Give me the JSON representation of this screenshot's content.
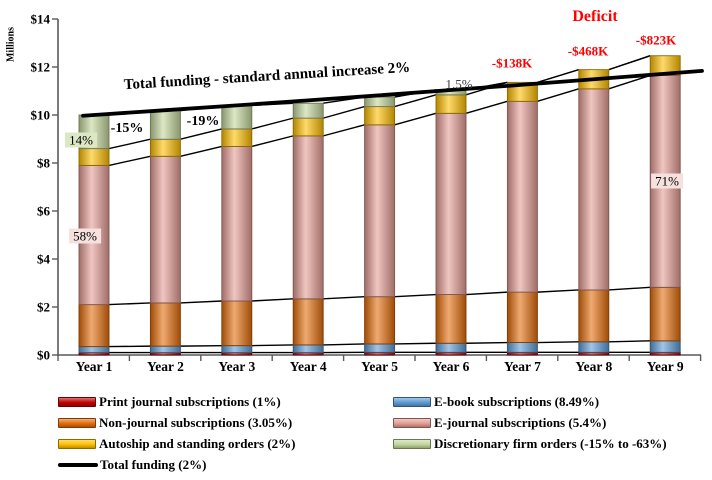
{
  "chart_data": {
    "type": "bar",
    "stacked": true,
    "overlay_line": true,
    "grid": false,
    "legend_position": "bottom",
    "ylabel": "Millions",
    "ylim": [
      0,
      14
    ],
    "ytick_labels": [
      "$0",
      "$2",
      "$4",
      "$6",
      "$8",
      "$10",
      "$12",
      "$14"
    ],
    "categories": [
      "Year 1",
      "Year 2",
      "Year 3",
      "Year 4",
      "Year 5",
      "Year 6",
      "Year 7",
      "Year 8",
      "Year 9"
    ],
    "series": [
      {
        "name": "Print journal subscriptions (1%)",
        "color": "#C00000",
        "values": [
          0.1,
          0.1,
          0.1,
          0.1,
          0.11,
          0.11,
          0.11,
          0.11,
          0.11
        ]
      },
      {
        "name": "E-book subscriptions (8.49%)",
        "color": "#5B9BD5",
        "values": [
          0.25,
          0.27,
          0.29,
          0.32,
          0.35,
          0.38,
          0.41,
          0.44,
          0.48
        ]
      },
      {
        "name": "Non-journal subscriptions (3.05%)",
        "color": "#E36C0A",
        "values": [
          1.75,
          1.8,
          1.86,
          1.92,
          1.97,
          2.03,
          2.1,
          2.16,
          2.23
        ]
      },
      {
        "name": "E-journal subscriptions (5.4%)",
        "color": "#E59C94",
        "values": [
          5.8,
          6.11,
          6.44,
          6.79,
          7.16,
          7.55,
          7.95,
          8.38,
          8.83
        ]
      },
      {
        "name": "Autoship and standing orders (2%)",
        "color": "#FFC000",
        "values": [
          0.7,
          0.71,
          0.73,
          0.74,
          0.76,
          0.77,
          0.79,
          0.8,
          0.82
        ]
      },
      {
        "name": "Discretionary firm orders (-15% to -63%)",
        "color": "#C3D69B",
        "values": [
          1.4,
          1.19,
          0.98,
          0.62,
          0.4,
          0.21,
          0,
          0,
          0
        ]
      }
    ],
    "line_series": {
      "name": "Total funding (2%)",
      "color": "#000000",
      "values": [
        10.0,
        10.2,
        10.4,
        10.61,
        10.82,
        11.04,
        11.26,
        11.49,
        11.72
      ]
    },
    "annotations": {
      "funding_note": "Total funding - standard annual increase 2%",
      "deficit_heading": "Deficit",
      "deficit_values": [
        "-$138K",
        "-$468K",
        "-$823K"
      ],
      "decline_labels": [
        "-15%",
        "-19%"
      ],
      "remaining_pct_label": "1.5%",
      "segment_labels": [
        "14%",
        "58%",
        "71%"
      ]
    }
  },
  "legend": {
    "columns": [
      {
        "items": [
          {
            "label": "Print journal subscriptions (1%)",
            "swatch": "box",
            "color": "#C00000"
          },
          {
            "label": "Non-journal subscriptions (3.05%)",
            "swatch": "box",
            "color": "#E36C0A"
          },
          {
            "label": "Autoship and standing orders (2%)",
            "swatch": "box",
            "color": "#FFC000"
          },
          {
            "label": "Total funding (2%)",
            "swatch": "line",
            "color": "#000000"
          }
        ]
      },
      {
        "items": [
          {
            "label": "E-book subscriptions (8.49%)",
            "swatch": "box",
            "color": "#5B9BD5"
          },
          {
            "label": "E-journal subscriptions (5.4%)",
            "swatch": "box",
            "color": "#E59C94"
          },
          {
            "label": "Discretionary firm orders (-15% to -63%)",
            "swatch": "box",
            "color": "#C3D69B"
          }
        ]
      }
    ]
  },
  "colors": {
    "deficit_red": "#FF0000",
    "axis_gray": "#595959",
    "segment_label_green_bg": "#DCE7C4",
    "segment_label_pink_bg": "#F6E1DE"
  }
}
